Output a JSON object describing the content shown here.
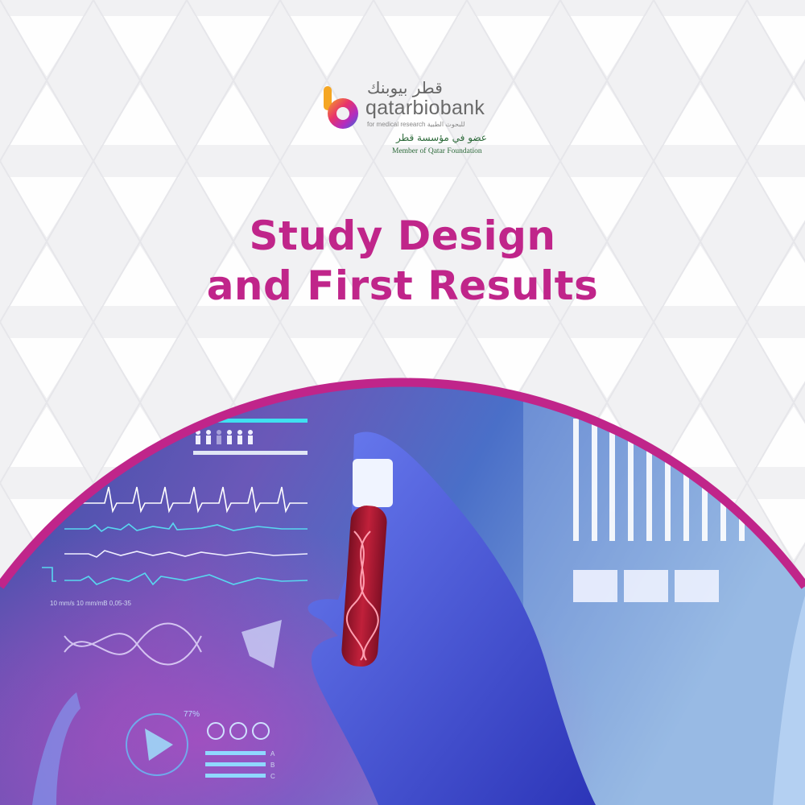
{
  "brand": {
    "name_ar": "قطر بيوبنك",
    "name_en": "qatarbiobank",
    "tagline_en": "for medical research",
    "tagline_ar": "للبحوث الطبية",
    "member_ar": "عضو في مؤسسة قطر",
    "member_en": "Member of Qatar Foundation"
  },
  "title": {
    "line1": "Study Design",
    "line2": "and First Results"
  },
  "illustration": {
    "ecg_scale": "10 mm/s   10 mm/mB   0,05-35",
    "percent": "77%",
    "bar_labels": [
      "A",
      "B",
      "C"
    ]
  },
  "colors": {
    "accent": "#c0258a",
    "background": "#f1f1f3",
    "photo_blue": "#3a4fb0",
    "tube_red": "#b0182e"
  }
}
